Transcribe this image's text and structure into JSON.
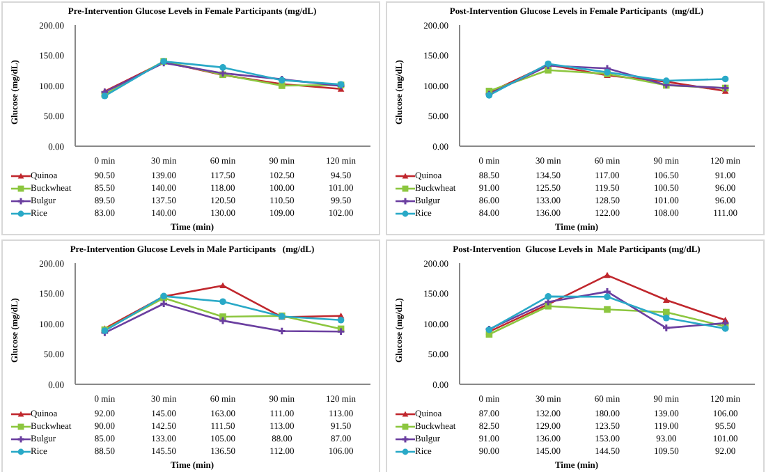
{
  "chart_data": [
    {
      "type": "line",
      "title": "Pre-Intervention Glucose Levels in Female Participants (mg/dL)",
      "xlabel": "Time (min)",
      "ylabel": "Glucose (mg/dL)",
      "categories": [
        "0 min",
        "30 min",
        "60 min",
        "90 min",
        "120 min"
      ],
      "ylim": [
        0,
        200
      ],
      "yticks": [
        {
          "value": 0,
          "label": "0.00"
        },
        {
          "value": 50,
          "label": "50.00"
        },
        {
          "value": 100,
          "label": "100.00"
        },
        {
          "value": 150,
          "label": "150.00"
        },
        {
          "value": 200,
          "label": "200.00"
        }
      ],
      "legend": "bottom",
      "series": [
        {
          "name": "Quinoa",
          "color": "#c0272d",
          "marker": "triangle",
          "values": [
            90.5,
            139,
            117.5,
            102.5,
            94.5
          ],
          "value_labels": [
            "90.50",
            "139.00",
            "117.50",
            "102.50",
            "94.50"
          ]
        },
        {
          "name": "Buckwheat",
          "color": "#8cc63f",
          "marker": "square",
          "values": [
            85.5,
            140,
            118,
            100,
            101
          ],
          "value_labels": [
            "85.50",
            "140.00",
            "118.00",
            "100.00",
            "101.00"
          ]
        },
        {
          "name": "Bulgur",
          "color": "#6b3fa0",
          "marker": "cross",
          "values": [
            89.5,
            137.5,
            120.5,
            110.5,
            99.5
          ],
          "value_labels": [
            "89.50",
            "137.50",
            "120.50",
            "110.50",
            "99.50"
          ]
        },
        {
          "name": "Rice",
          "color": "#29a9c7",
          "marker": "circle",
          "values": [
            83,
            140,
            130,
            109,
            102
          ],
          "value_labels": [
            "83.00",
            "140.00",
            "130.00",
            "109.00",
            "102.00"
          ]
        }
      ]
    },
    {
      "type": "line",
      "title": "Post-Intervention Glucose Levels in Female Participants  (mg/dL)",
      "xlabel": "Time (min)",
      "ylabel": "Glucose (mg/dL)",
      "categories": [
        "0 min",
        "30 min",
        "60 min",
        "90 min",
        "120 min"
      ],
      "ylim": [
        0,
        200
      ],
      "yticks": [
        {
          "value": 0,
          "label": "0.00"
        },
        {
          "value": 50,
          "label": "50.00"
        },
        {
          "value": 100,
          "label": "100.00"
        },
        {
          "value": 150,
          "label": "150.00"
        },
        {
          "value": 200,
          "label": "200.00"
        }
      ],
      "legend": "bottom",
      "series": [
        {
          "name": "Quinoa",
          "color": "#c0272d",
          "marker": "triangle",
          "values": [
            88.5,
            134.5,
            117,
            106.5,
            91
          ],
          "value_labels": [
            "88.50",
            "134.50",
            "117.00",
            "106.50",
            "91.00"
          ]
        },
        {
          "name": "Buckwheat",
          "color": "#8cc63f",
          "marker": "square",
          "values": [
            91,
            125.5,
            119.5,
            100.5,
            96
          ],
          "value_labels": [
            "91.00",
            "125.50",
            "119.50",
            "100.50",
            "96.00"
          ]
        },
        {
          "name": "Bulgur",
          "color": "#6b3fa0",
          "marker": "cross",
          "values": [
            86,
            133,
            128.5,
            101,
            96
          ],
          "value_labels": [
            "86.00",
            "133.00",
            "128.50",
            "101.00",
            "96.00"
          ]
        },
        {
          "name": "Rice",
          "color": "#29a9c7",
          "marker": "circle",
          "values": [
            84,
            136,
            122,
            108,
            111
          ],
          "value_labels": [
            "84.00",
            "136.00",
            "122.00",
            "108.00",
            "111.00"
          ]
        }
      ]
    },
    {
      "type": "line",
      "title": "Pre-Intervention Glucose Levels in Male Participants   (mg/dL)",
      "xlabel": "Time (min)",
      "ylabel": "Glucose (mg/dL)",
      "categories": [
        "0 min",
        "30 min",
        "60 min",
        "90 min",
        "120 min"
      ],
      "ylim": [
        0,
        200
      ],
      "yticks": [
        {
          "value": 0,
          "label": "0.00"
        },
        {
          "value": 50,
          "label": "50.00"
        },
        {
          "value": 100,
          "label": "100.00"
        },
        {
          "value": 150,
          "label": "150.00"
        },
        {
          "value": 200,
          "label": "200.00"
        }
      ],
      "legend": "bottom",
      "series": [
        {
          "name": "Quinoa",
          "color": "#c0272d",
          "marker": "triangle",
          "values": [
            92,
            145,
            163,
            111,
            113
          ],
          "value_labels": [
            "92.00",
            "145.00",
            "163.00",
            "111.00",
            "113.00"
          ]
        },
        {
          "name": "Buckwheat",
          "color": "#8cc63f",
          "marker": "square",
          "values": [
            90,
            142.5,
            111.5,
            113,
            91.5
          ],
          "value_labels": [
            "90.00",
            "142.50",
            "111.50",
            "113.00",
            "91.50"
          ]
        },
        {
          "name": "Bulgur",
          "color": "#6b3fa0",
          "marker": "cross",
          "values": [
            85,
            133,
            105,
            88,
            87
          ],
          "value_labels": [
            "85.00",
            "133.00",
            "105.00",
            "88.00",
            "87.00"
          ]
        },
        {
          "name": "Rice",
          "color": "#29a9c7",
          "marker": "circle",
          "values": [
            88.5,
            145.5,
            136.5,
            112,
            106
          ],
          "value_labels": [
            "88.50",
            "145.50",
            "136.50",
            "112.00",
            "106.00"
          ]
        }
      ]
    },
    {
      "type": "line",
      "title": "Post-Intervention  Glucose Levels in  Male Participants (mg/dL)",
      "xlabel": "Time (min)",
      "ylabel": "Glucose (mg/dL)",
      "categories": [
        "0 min",
        "30 min",
        "60 min",
        "90 min",
        "120 min"
      ],
      "ylim": [
        0,
        200
      ],
      "yticks": [
        {
          "value": 0,
          "label": "0.00"
        },
        {
          "value": 50,
          "label": "50.00"
        },
        {
          "value": 100,
          "label": "100.00"
        },
        {
          "value": 150,
          "label": "150.00"
        },
        {
          "value": 200,
          "label": "200.00"
        }
      ],
      "legend": "bottom",
      "series": [
        {
          "name": "Quinoa",
          "color": "#c0272d",
          "marker": "triangle",
          "values": [
            87,
            132,
            180,
            139,
            106
          ],
          "value_labels": [
            "87.00",
            "132.00",
            "180.00",
            "139.00",
            "106.00"
          ]
        },
        {
          "name": "Buckwheat",
          "color": "#8cc63f",
          "marker": "square",
          "values": [
            82.5,
            129,
            123.5,
            119,
            95.5
          ],
          "value_labels": [
            "82.50",
            "129.00",
            "123.50",
            "119.00",
            "95.50"
          ]
        },
        {
          "name": "Bulgur",
          "color": "#6b3fa0",
          "marker": "cross",
          "values": [
            91,
            136,
            153,
            93,
            101
          ],
          "value_labels": [
            "91.00",
            "136.00",
            "153.00",
            "93.00",
            "101.00"
          ]
        },
        {
          "name": "Rice",
          "color": "#29a9c7",
          "marker": "circle",
          "values": [
            90,
            145,
            144.5,
            109.5,
            92
          ],
          "value_labels": [
            "90.00",
            "145.00",
            "144.50",
            "109.50",
            "92.00"
          ]
        }
      ]
    }
  ]
}
